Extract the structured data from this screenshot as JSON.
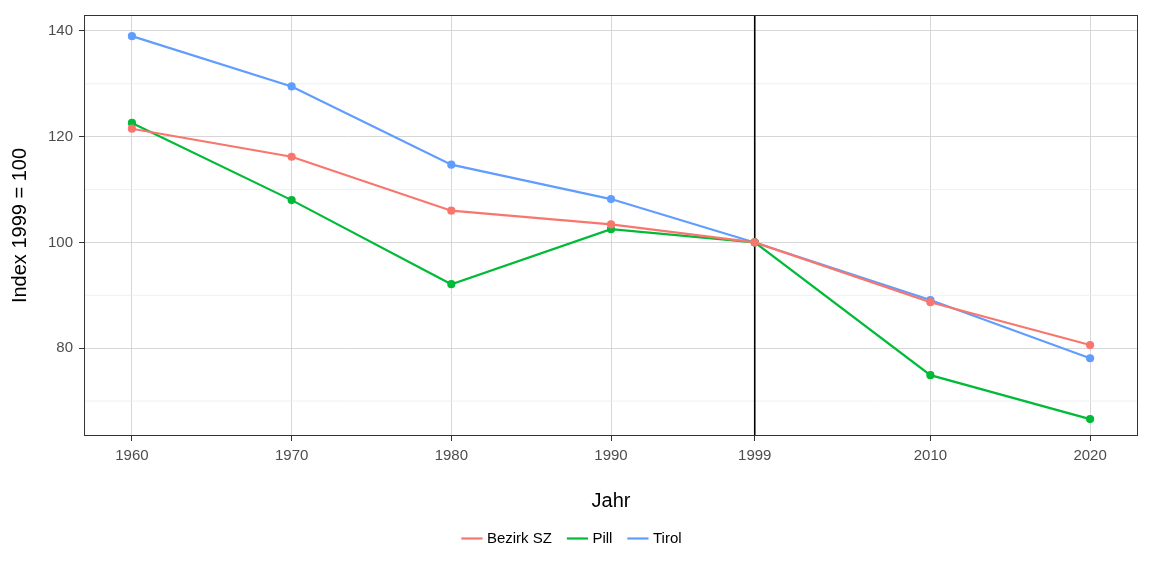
{
  "chart_data": {
    "type": "line",
    "x_label": "Jahr",
    "y_label": "Index 1999 = 100",
    "x": [
      1960,
      1970,
      1980,
      1990,
      1999,
      2010,
      2020
    ],
    "series": [
      {
        "name": "Bezirk SZ",
        "color": "#F8766D",
        "values": [
          121.5,
          116.2,
          106.0,
          103.4,
          100.0,
          88.7,
          80.6
        ]
      },
      {
        "name": "Pill",
        "color": "#00BA38",
        "values": [
          122.6,
          108.0,
          92.1,
          102.5,
          100.0,
          74.9,
          66.6
        ]
      },
      {
        "name": "Tirol",
        "color": "#619CFF",
        "values": [
          139.0,
          129.5,
          114.7,
          108.2,
          100.0,
          89.1,
          78.1
        ]
      }
    ],
    "xlim": [
      1957,
      2023
    ],
    "xticks": [
      1960,
      1970,
      1980,
      1990,
      1999,
      2010,
      2020
    ],
    "ylim": [
      63.4,
      143
    ],
    "yticks": [
      80,
      100,
      120,
      140
    ],
    "reference_line_x": 1999,
    "grid": true,
    "legend": "bottom",
    "marker": "circle",
    "line_style": "solid"
  }
}
